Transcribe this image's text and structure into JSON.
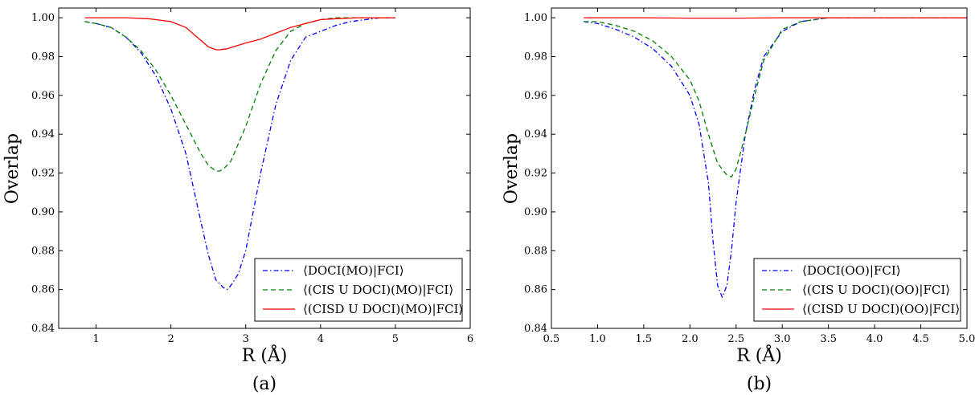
{
  "chart_data": [
    {
      "type": "line",
      "panel_label": "(a)",
      "xlabel": "R (Å)",
      "ylabel": "Overlap",
      "xlim": [
        0.5,
        6
      ],
      "ylim": [
        0.84,
        1.005
      ],
      "xticks": [
        1,
        2,
        3,
        4,
        5,
        6
      ],
      "xtick_labels": [
        "1",
        "2",
        "3",
        "4",
        "5",
        "6"
      ],
      "yticks": [
        0.84,
        0.86,
        0.88,
        0.9,
        0.92,
        0.94,
        0.96,
        0.98,
        1.0
      ],
      "ytick_labels": [
        "0.84",
        "0.86",
        "0.88",
        "0.90",
        "0.92",
        "0.94",
        "0.96",
        "0.98",
        "1.00"
      ],
      "grid": false,
      "legend_position": "lower-right",
      "series": [
        {
          "name": "⟨DOCI(MO)|FCI⟩",
          "color": "#0000ff",
          "style": "dashdot",
          "x": [
            0.85,
            1.0,
            1.2,
            1.4,
            1.6,
            1.8,
            2.0,
            2.2,
            2.4,
            2.5,
            2.6,
            2.7,
            2.75,
            2.8,
            2.9,
            3.0,
            3.2,
            3.4,
            3.6,
            3.8,
            4.0,
            4.2,
            4.4,
            4.6,
            4.8,
            5.0
          ],
          "y": [
            0.998,
            0.997,
            0.995,
            0.99,
            0.982,
            0.97,
            0.953,
            0.93,
            0.895,
            0.878,
            0.865,
            0.861,
            0.86,
            0.862,
            0.868,
            0.88,
            0.92,
            0.955,
            0.978,
            0.99,
            0.993,
            0.996,
            0.998,
            0.999,
            1.0,
            1.0
          ]
        },
        {
          "name": "⟨(CIS U DOCI)(MO)|FCI⟩",
          "color": "#008000",
          "style": "dashed",
          "x": [
            0.85,
            1.0,
            1.2,
            1.4,
            1.6,
            1.8,
            2.0,
            2.2,
            2.4,
            2.5,
            2.6,
            2.65,
            2.7,
            2.8,
            3.0,
            3.2,
            3.4,
            3.6,
            3.8,
            4.0,
            4.2,
            4.4,
            5.0
          ],
          "y": [
            0.998,
            0.997,
            0.995,
            0.99,
            0.983,
            0.973,
            0.96,
            0.945,
            0.93,
            0.924,
            0.921,
            0.921,
            0.922,
            0.926,
            0.944,
            0.966,
            0.983,
            0.993,
            0.997,
            0.999,
            1.0,
            1.0,
            1.0
          ]
        },
        {
          "name": "⟨(CISD U DOCI)(MO)|FCI⟩",
          "color": "#ff0000",
          "style": "solid",
          "x": [
            0.85,
            1.0,
            1.4,
            1.7,
            2.0,
            2.2,
            2.35,
            2.5,
            2.6,
            2.65,
            2.75,
            3.0,
            3.2,
            3.4,
            3.6,
            3.8,
            4.0,
            4.2,
            4.5,
            5.0
          ],
          "y": [
            1.0,
            1.0,
            1.0,
            0.9995,
            0.998,
            0.995,
            0.99,
            0.985,
            0.9835,
            0.9835,
            0.984,
            0.987,
            0.989,
            0.992,
            0.995,
            0.997,
            0.999,
            0.9995,
            1.0,
            1.0
          ]
        }
      ]
    },
    {
      "type": "line",
      "panel_label": "(b)",
      "xlabel": "R (Å)",
      "ylabel": "Overlap",
      "xlim": [
        0.5,
        5.0
      ],
      "ylim": [
        0.84,
        1.005
      ],
      "xticks": [
        0.5,
        1.0,
        1.5,
        2.0,
        2.5,
        3.0,
        3.5,
        4.0,
        4.5,
        5.0
      ],
      "xtick_labels": [
        "0.5",
        "1.0",
        "1.5",
        "2.0",
        "2.5",
        "3.0",
        "3.5",
        "4.0",
        "4.5",
        "5.0"
      ],
      "yticks": [
        0.84,
        0.86,
        0.88,
        0.9,
        0.92,
        0.94,
        0.96,
        0.98,
        1.0
      ],
      "ytick_labels": [
        "0.84",
        "0.86",
        "0.88",
        "0.90",
        "0.92",
        "0.94",
        "0.96",
        "0.98",
        "1.00"
      ],
      "grid": false,
      "legend_position": "lower-right",
      "series": [
        {
          "name": "⟨DOCI(OO)|FCI⟩",
          "color": "#0000ff",
          "style": "dashdot",
          "x": [
            0.85,
            1.0,
            1.2,
            1.4,
            1.6,
            1.8,
            2.0,
            2.1,
            2.2,
            2.25,
            2.3,
            2.35,
            2.4,
            2.45,
            2.5,
            2.6,
            2.7,
            2.8,
            3.0,
            3.2,
            3.5,
            4.0,
            5.0
          ],
          "y": [
            0.998,
            0.997,
            0.994,
            0.99,
            0.984,
            0.975,
            0.96,
            0.945,
            0.915,
            0.885,
            0.862,
            0.856,
            0.862,
            0.88,
            0.905,
            0.94,
            0.963,
            0.98,
            0.993,
            0.998,
            1.0,
            1.0,
            1.0
          ]
        },
        {
          "name": "⟨(CIS U DOCI)(OO)|FCI⟩",
          "color": "#008000",
          "style": "dashed",
          "x": [
            0.85,
            1.0,
            1.2,
            1.4,
            1.6,
            1.8,
            2.0,
            2.1,
            2.2,
            2.3,
            2.4,
            2.45,
            2.5,
            2.6,
            2.7,
            2.8,
            3.0,
            3.2,
            3.5,
            4.0,
            5.0
          ],
          "y": [
            0.998,
            0.998,
            0.996,
            0.993,
            0.988,
            0.98,
            0.968,
            0.957,
            0.94,
            0.925,
            0.919,
            0.918,
            0.922,
            0.94,
            0.96,
            0.978,
            0.994,
            0.998,
            1.0,
            1.0,
            1.0
          ]
        },
        {
          "name": "⟨(CISD U DOCI)(OO)|FCI⟩",
          "color": "#ff0000",
          "style": "solid",
          "x": [
            0.85,
            1.5,
            2.0,
            2.5,
            3.0,
            4.0,
            5.0
          ],
          "y": [
            1.0,
            1.0,
            0.9998,
            0.9998,
            1.0,
            1.0,
            1.0
          ]
        }
      ]
    }
  ]
}
